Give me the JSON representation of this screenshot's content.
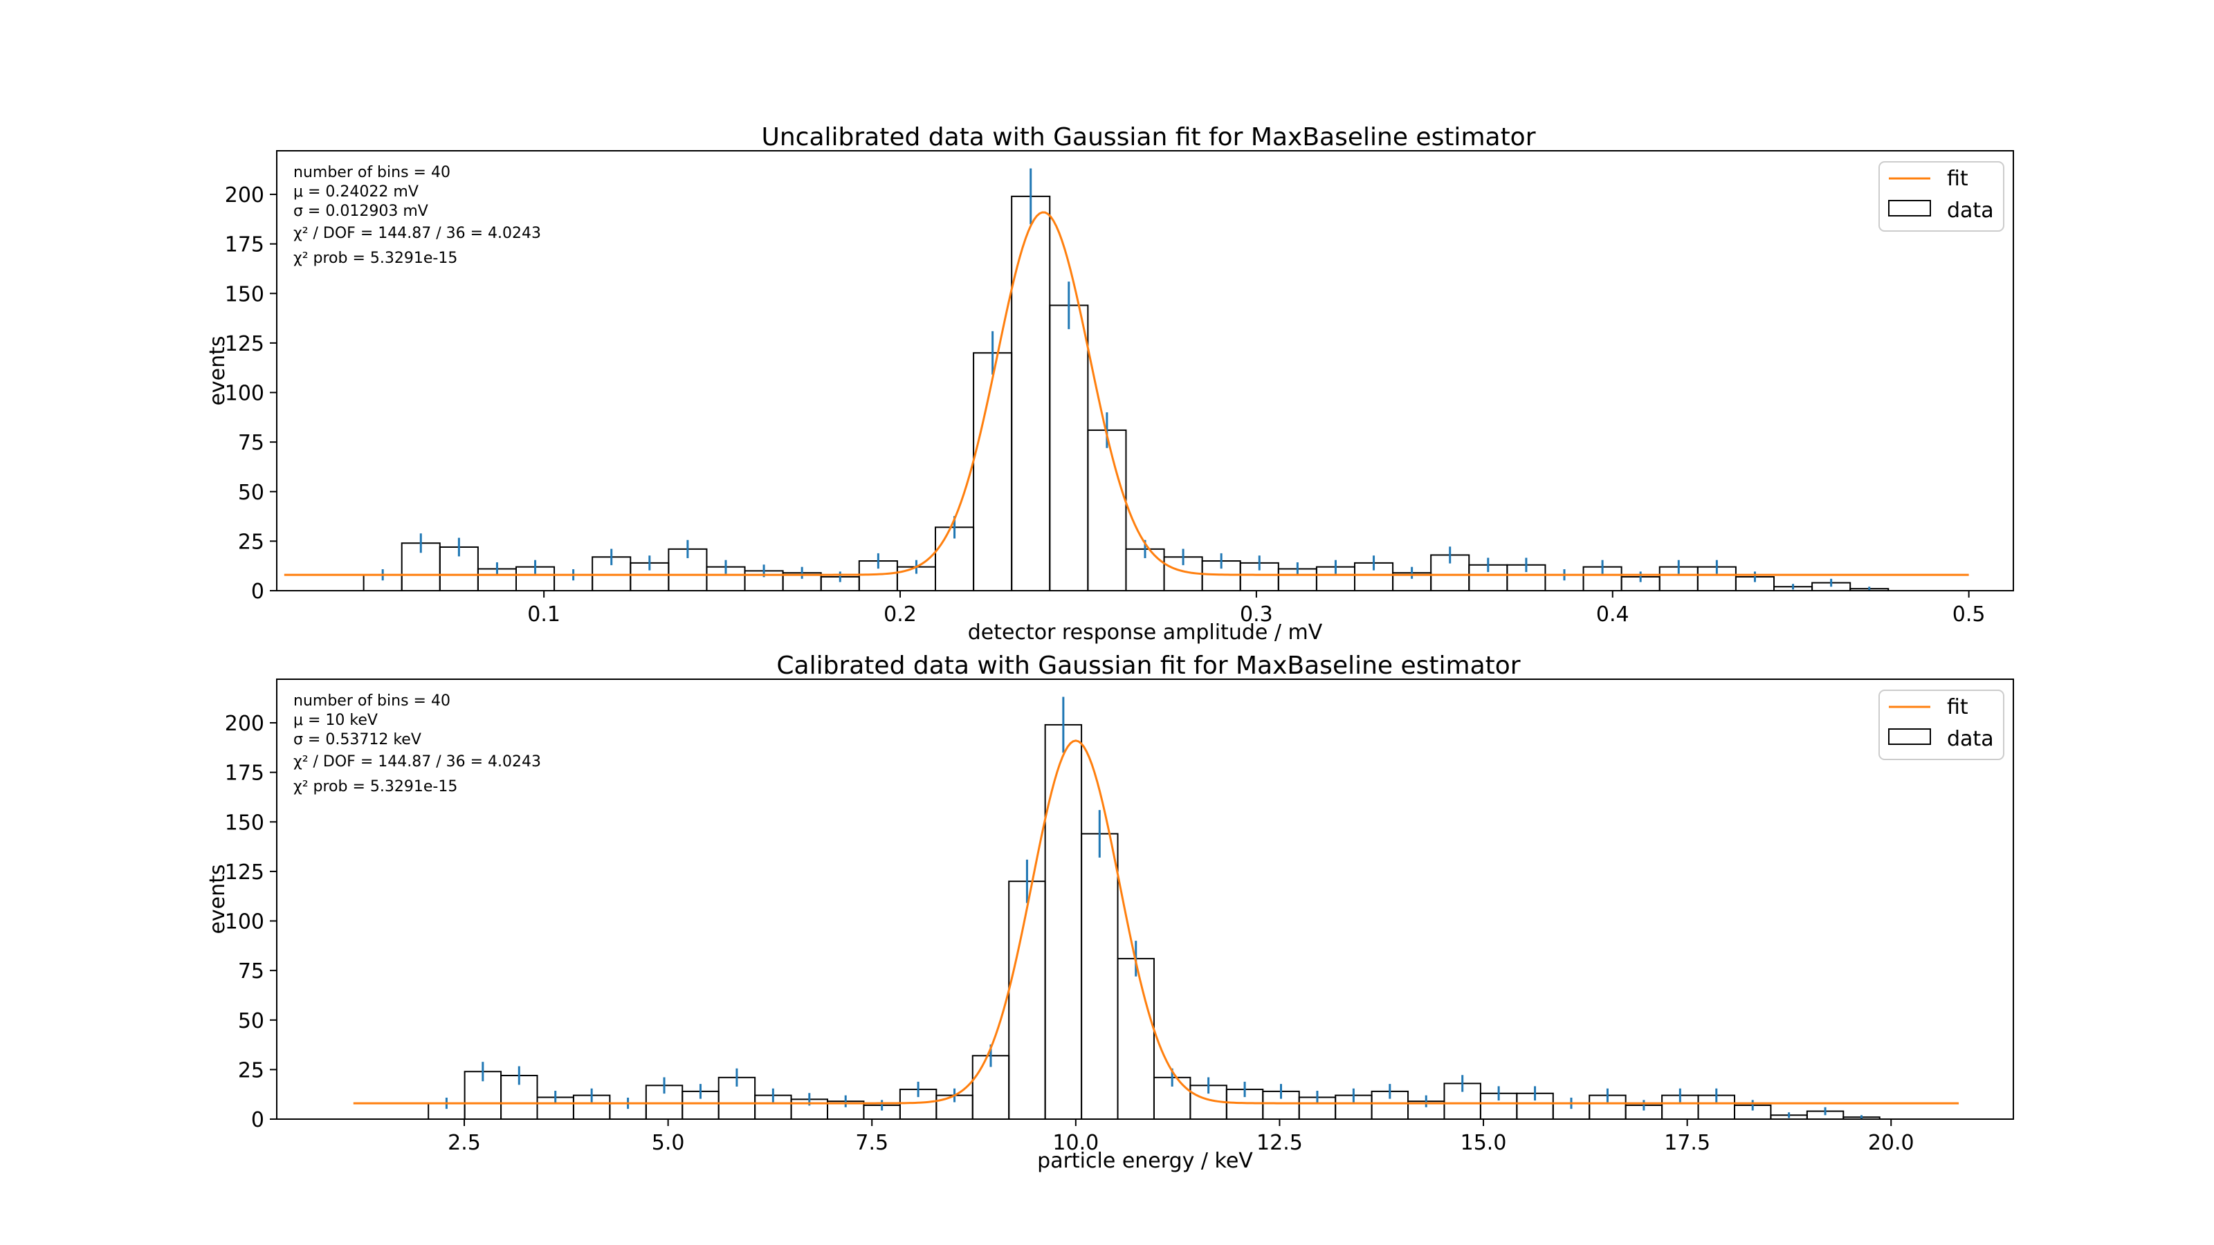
{
  "chart_data": [
    {
      "type": "histogram",
      "title": "Uncalibrated data with Gaussian fit for MaxBaseline estimator",
      "xlabel": "detector response amplitude / mV",
      "ylabel": "events",
      "xlim": [
        0.025,
        0.5125
      ],
      "ylim": [
        0,
        222
      ],
      "xticks": [
        0.1,
        0.2,
        0.3,
        0.4,
        0.5
      ],
      "xtick_labels": [
        "0.1",
        "0.2",
        "0.3",
        "0.4",
        "0.5"
      ],
      "yticks": [
        0,
        25,
        50,
        75,
        100,
        125,
        150,
        175,
        200
      ],
      "ytick_labels": [
        "0",
        "25",
        "50",
        "75",
        "100",
        "125",
        "150",
        "175",
        "200"
      ],
      "grid": false,
      "legend": {
        "position": "top-right",
        "entries": [
          "fit",
          "data"
        ]
      },
      "stats": [
        "number of bins = 40",
        "μ = 0.24022 mV",
        "σ = 0.012903 mV",
        "χ² / DOF = 144.87 / 36 = 4.0243",
        "χ² prob = 5.3291e-15"
      ],
      "bin_edges": [
        0.0494,
        0.0601,
        0.0708,
        0.0815,
        0.0922,
        0.1029,
        0.1136,
        0.1243,
        0.135,
        0.1457,
        0.1564,
        0.1671,
        0.1778,
        0.1885,
        0.1992,
        0.2099,
        0.2206,
        0.2313,
        0.242,
        0.2527,
        0.2634,
        0.2741,
        0.2848,
        0.2955,
        0.3062,
        0.3169,
        0.3276,
        0.3383,
        0.349,
        0.3597,
        0.3704,
        0.3811,
        0.3918,
        0.4025,
        0.4132,
        0.4239,
        0.4346,
        0.4453,
        0.456,
        0.4667,
        0.4774
      ],
      "counts": [
        8,
        24,
        22,
        11,
        12,
        8,
        17,
        14,
        21,
        12,
        10,
        9,
        7,
        15,
        12,
        32,
        120,
        199,
        144,
        81,
        21,
        17,
        15,
        14,
        11,
        12,
        14,
        9,
        18,
        13,
        13,
        8,
        12,
        7,
        12,
        12,
        7,
        2,
        4,
        1
      ],
      "fit": {
        "name": "fit",
        "model": "gaussian",
        "mu": 0.24022,
        "sigma": 0.012903,
        "amplitude": 183,
        "offset": 8,
        "x_range": [
          0.0271,
          0.5
        ]
      },
      "colors": {
        "fit": "#ff7f0e",
        "errorbars": "#1f77b4",
        "histogram": "#000000"
      }
    },
    {
      "type": "histogram",
      "title": "Calibrated data with Gaussian fit for  MaxBaseline estimator",
      "xlabel": "particle energy / keV",
      "ylabel": "events",
      "xlim": [
        0.2,
        21.5
      ],
      "ylim": [
        0,
        222
      ],
      "xticks": [
        2.5,
        5.0,
        7.5,
        10.0,
        12.5,
        15.0,
        17.5,
        20.0
      ],
      "xtick_labels": [
        "2.5",
        "5.0",
        "7.5",
        "10.0",
        "12.5",
        "15.0",
        "17.5",
        "20.0"
      ],
      "yticks": [
        0,
        25,
        50,
        75,
        100,
        125,
        150,
        175,
        200
      ],
      "ytick_labels": [
        "0",
        "25",
        "50",
        "75",
        "100",
        "125",
        "150",
        "175",
        "200"
      ],
      "grid": false,
      "legend": {
        "position": "top-right",
        "entries": [
          "fit",
          "data"
        ]
      },
      "stats": [
        "number of bins = 40",
        "μ = 10 keV",
        "σ = 0.53712 keV",
        "χ² / DOF = 144.87 / 36 = 4.0243",
        "χ² prob = 5.3291e-15"
      ],
      "bin_edges": [
        2.06,
        2.505,
        2.95,
        3.395,
        3.84,
        4.285,
        4.73,
        5.175,
        5.62,
        6.065,
        6.51,
        6.955,
        7.4,
        7.845,
        8.29,
        8.735,
        9.18,
        9.625,
        10.07,
        10.515,
        10.96,
        11.405,
        11.85,
        12.295,
        12.74,
        13.185,
        13.63,
        14.075,
        14.52,
        14.965,
        15.41,
        15.855,
        16.3,
        16.745,
        17.19,
        17.635,
        18.08,
        18.525,
        18.97,
        19.415,
        19.86
      ],
      "counts": [
        8,
        24,
        22,
        11,
        12,
        8,
        17,
        14,
        21,
        12,
        10,
        9,
        7,
        15,
        12,
        32,
        120,
        199,
        144,
        81,
        21,
        17,
        15,
        14,
        11,
        12,
        14,
        9,
        18,
        13,
        13,
        8,
        12,
        7,
        12,
        12,
        7,
        2,
        4,
        1
      ],
      "fit": {
        "name": "fit",
        "model": "gaussian",
        "mu": 10,
        "sigma": 0.53712,
        "amplitude": 183,
        "offset": 8,
        "x_range": [
          1.14,
          20.83
        ]
      },
      "colors": {
        "fit": "#ff7f0e",
        "errorbars": "#1f77b4",
        "histogram": "#000000"
      }
    }
  ]
}
